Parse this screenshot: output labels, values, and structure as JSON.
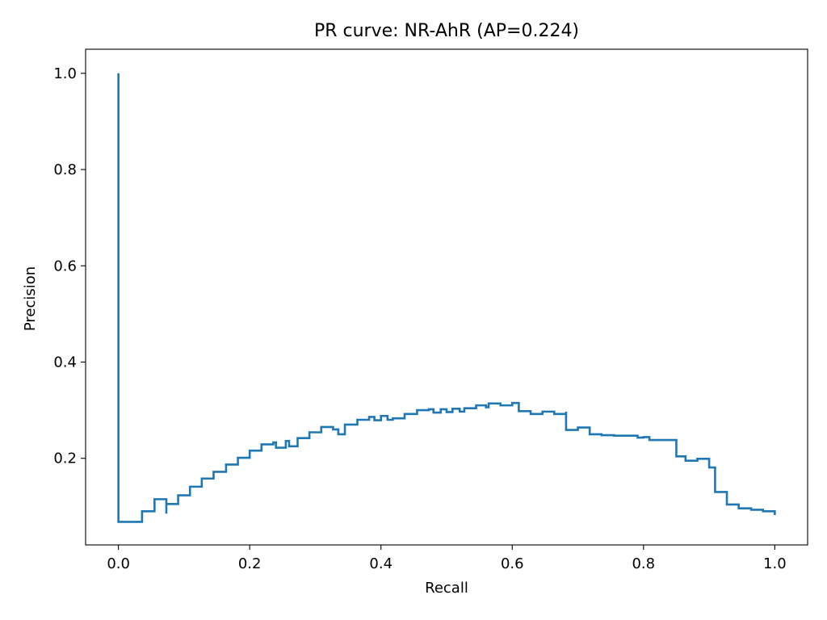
{
  "chart_data": {
    "type": "line",
    "drawstyle": "steps-post",
    "title": "PR curve: NR-AhR (AP=0.224)",
    "xlabel": "Recall",
    "ylabel": "Precision",
    "xlim": [
      -0.05,
      1.05
    ],
    "ylim": [
      0.02,
      1.05
    ],
    "xticks": [
      0.0,
      0.2,
      0.4,
      0.6,
      0.8,
      1.0
    ],
    "xtick_labels": [
      "0.0",
      "0.2",
      "0.4",
      "0.6",
      "0.8",
      "1.0"
    ],
    "yticks": [
      0.2,
      0.4,
      0.6,
      0.8,
      1.0
    ],
    "ytick_labels": [
      "0.2",
      "0.4",
      "0.6",
      "0.8",
      "1.0"
    ],
    "grid": false,
    "legend": "none",
    "series": [
      {
        "color": "#1f77b4",
        "recall": [
          0.0,
          0.0,
          0.0,
          0.036,
          0.055,
          0.073,
          0.073,
          0.091,
          0.109,
          0.127,
          0.145,
          0.164,
          0.182,
          0.2,
          0.218,
          0.236,
          0.24,
          0.255,
          0.26,
          0.273,
          0.291,
          0.309,
          0.327,
          0.335,
          0.345,
          0.364,
          0.382,
          0.39,
          0.4,
          0.41,
          0.418,
          0.436,
          0.455,
          0.473,
          0.48,
          0.491,
          0.5,
          0.509,
          0.52,
          0.527,
          0.545,
          0.56,
          0.564,
          0.582,
          0.6,
          0.61,
          0.61,
          0.628,
          0.646,
          0.664,
          0.682,
          0.682,
          0.7,
          0.718,
          0.718,
          0.736,
          0.755,
          0.773,
          0.791,
          0.8,
          0.809,
          0.827,
          0.845,
          0.85,
          0.864,
          0.882,
          0.9,
          0.909,
          0.927,
          0.945,
          0.964,
          0.982,
          1.0,
          1.0
        ],
        "precision": [
          1.0,
          1.0,
          0.068,
          0.09,
          0.115,
          0.085,
          0.105,
          0.123,
          0.141,
          0.158,
          0.172,
          0.187,
          0.201,
          0.216,
          0.229,
          0.233,
          0.222,
          0.236,
          0.225,
          0.242,
          0.254,
          0.265,
          0.26,
          0.25,
          0.27,
          0.28,
          0.286,
          0.279,
          0.288,
          0.28,
          0.283,
          0.292,
          0.3,
          0.302,
          0.295,
          0.302,
          0.296,
          0.303,
          0.297,
          0.304,
          0.31,
          0.306,
          0.314,
          0.31,
          0.315,
          0.31,
          0.298,
          0.292,
          0.297,
          0.292,
          0.297,
          0.259,
          0.264,
          0.264,
          0.25,
          0.248,
          0.247,
          0.247,
          0.243,
          0.244,
          0.238,
          0.238,
          0.238,
          0.204,
          0.195,
          0.199,
          0.181,
          0.13,
          0.104,
          0.096,
          0.093,
          0.09,
          0.082,
          0.082
        ]
      }
    ]
  }
}
